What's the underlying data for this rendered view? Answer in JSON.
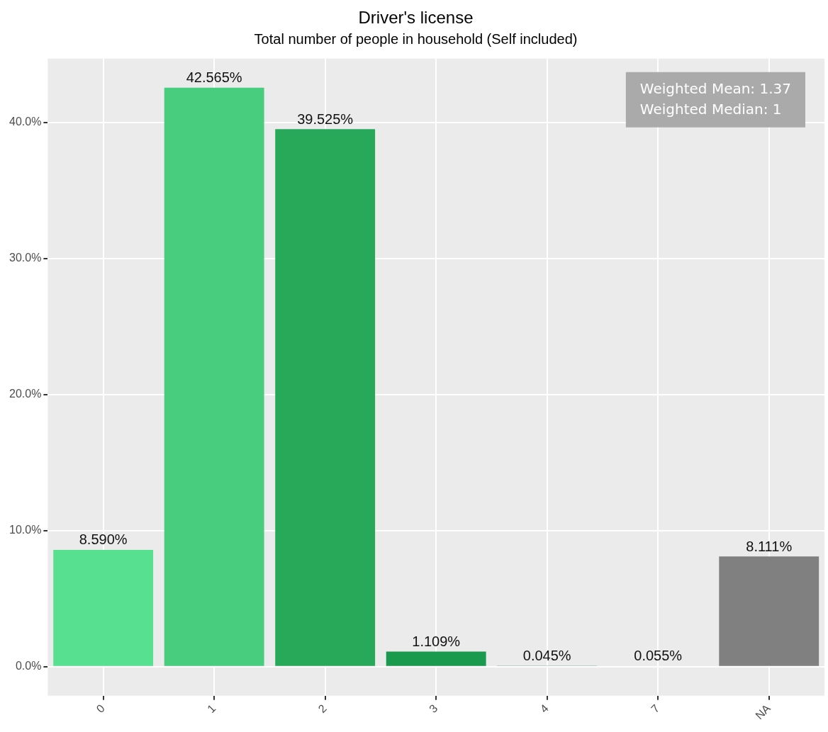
{
  "chart_data": {
    "type": "bar",
    "title": "Driver's license",
    "subtitle": "Total number of people in household (Self included)",
    "categories": [
      "0",
      "1",
      "2",
      "3",
      "4",
      "7",
      "NA"
    ],
    "values": [
      8.59,
      42.565,
      39.525,
      1.109,
      0.045,
      0.055,
      8.111
    ],
    "colors": [
      "#57e090",
      "#48cc7e",
      "#28a95a",
      "#1a9a4c",
      "#148a40",
      "#0f7a35",
      "#808080"
    ],
    "value_labels": [
      "8.590%",
      "42.565%",
      "39.525%",
      "1.109%",
      "0.045%",
      "0.055%",
      "8.111%"
    ],
    "ylim": [
      -2.13,
      44.7
    ],
    "yticks": [
      {
        "value": 0,
        "label": "0.0%"
      },
      {
        "value": 10,
        "label": "10.0%"
      },
      {
        "value": 20,
        "label": "20.0%"
      },
      {
        "value": 30,
        "label": "30.0%"
      },
      {
        "value": 40,
        "label": "40.0%"
      }
    ],
    "grid": true,
    "annotations": [
      "Weighted Mean: 1.37\nWeighted Median: 1"
    ]
  }
}
